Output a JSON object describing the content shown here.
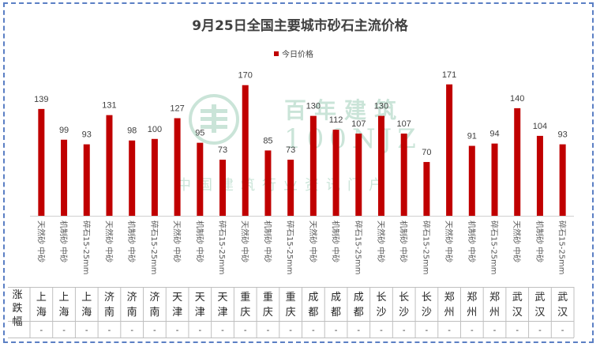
{
  "chart_data": {
    "type": "bar",
    "title": "9月25日全国主要城市砂石主流价格",
    "series": [
      {
        "name": "今日价格",
        "color": "#c00000",
        "values": [
          139,
          99,
          93,
          131,
          98,
          100,
          127,
          95,
          73,
          170,
          85,
          73,
          130,
          112,
          107,
          130,
          107,
          70,
          171,
          91,
          94,
          140,
          104,
          93
        ]
      }
    ],
    "categories": [
      "天然砂 中砂",
      "机制砂 中砂",
      "碎石15-25mm",
      "天然砂 中砂",
      "机制砂 中砂",
      "碎石15-25mm",
      "天然砂 中砂",
      "机制砂 中砂",
      "碎石15-25mm",
      "天然砂 中砂",
      "机制砂 中砂",
      "碎石15-25mm",
      "天然砂 中砂",
      "机制砂 中砂",
      "碎石15-25mm",
      "天然砂 中砂",
      "机制砂 中砂",
      "碎石15-25mm",
      "天然砂 中砂",
      "机制砂 中砂",
      "碎石15-25mm",
      "天然砂 中砂",
      "机制砂 中砂",
      "碎石15-25mm"
    ],
    "cities": [
      "上海",
      "上海",
      "上海",
      "济南",
      "济南",
      "济南",
      "天津",
      "天津",
      "天津",
      "重庆",
      "重庆",
      "重庆",
      "成都",
      "成都",
      "成都",
      "长沙",
      "长沙",
      "长沙",
      "郑州",
      "郑州",
      "郑州",
      "武汉",
      "武汉",
      "武汉"
    ],
    "change_label": "涨跌幅",
    "changes": [
      "-",
      "-",
      "-",
      "-",
      "-",
      "-",
      "-",
      "-",
      "-",
      "-",
      "-",
      "-",
      "-",
      "-",
      "-",
      "-",
      "-",
      "-",
      "-",
      "-",
      "-",
      "-",
      "-",
      "-"
    ],
    "ylim": [
      0,
      180
    ],
    "grid": false,
    "legend_position": "top-center"
  },
  "watermark": {
    "brand": "百年建筑",
    "code": "100NJZ",
    "slogan": "中国建筑行业资讯门户"
  }
}
